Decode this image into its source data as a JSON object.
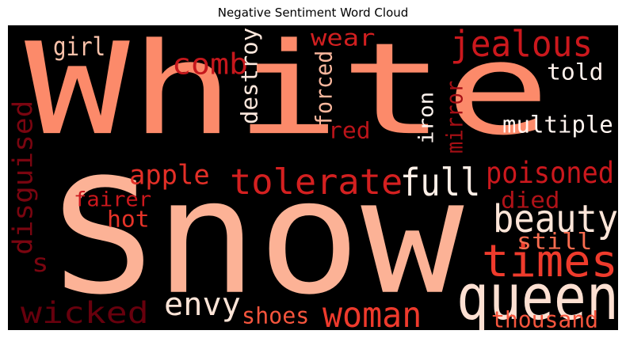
{
  "title": "Negative Sentiment Word Cloud",
  "chart_data": {
    "type": "wordcloud",
    "title": "Negative Sentiment Word Cloud",
    "background": "#000000",
    "colormap": "Reds",
    "words": [
      {
        "text": "White",
        "color": "#fc8a6a"
      },
      {
        "text": "Snow",
        "color": "#fcb296"
      },
      {
        "text": "queen",
        "color": "#fde0d2"
      },
      {
        "text": "times",
        "color": "#ef3b2c"
      },
      {
        "text": "jealous",
        "color": "#cb181d"
      },
      {
        "text": "tolerate",
        "color": "#d42020"
      },
      {
        "text": "full",
        "color": "#fff0e8"
      },
      {
        "text": "beauty",
        "color": "#fee5d8"
      },
      {
        "text": "woman",
        "color": "#ee3a2c"
      },
      {
        "text": "envy",
        "color": "#fee5d8"
      },
      {
        "text": "wicked",
        "color": "#67000d"
      },
      {
        "text": "poisoned",
        "color": "#cb181d"
      },
      {
        "text": "multiple",
        "color": "#fff5f0"
      },
      {
        "text": "comb",
        "color": "#c5171c"
      },
      {
        "text": "apple",
        "color": "#e32f27"
      },
      {
        "text": "disguised",
        "color": "#7a0510"
      },
      {
        "text": "destroy",
        "color": "#fee8dd"
      },
      {
        "text": "forced",
        "color": "#fcb89e"
      },
      {
        "text": "iron",
        "color": "#fff5f0"
      },
      {
        "text": "mirror",
        "color": "#a50f15"
      },
      {
        "text": "wear",
        "color": "#d21f20"
      },
      {
        "text": "girl",
        "color": "#fcc3ab"
      },
      {
        "text": "told",
        "color": "#fff2ec"
      },
      {
        "text": "red",
        "color": "#bb141a"
      },
      {
        "text": "fairer",
        "color": "#cb181d"
      },
      {
        "text": "hot",
        "color": "#e63328"
      },
      {
        "text": "died",
        "color": "#b11218"
      },
      {
        "text": "still",
        "color": "#f96c4f"
      },
      {
        "text": "shoes",
        "color": "#f5553d"
      },
      {
        "text": "thousand",
        "color": "#f5553d"
      },
      {
        "text": "s",
        "color": "#7a0510"
      }
    ]
  }
}
